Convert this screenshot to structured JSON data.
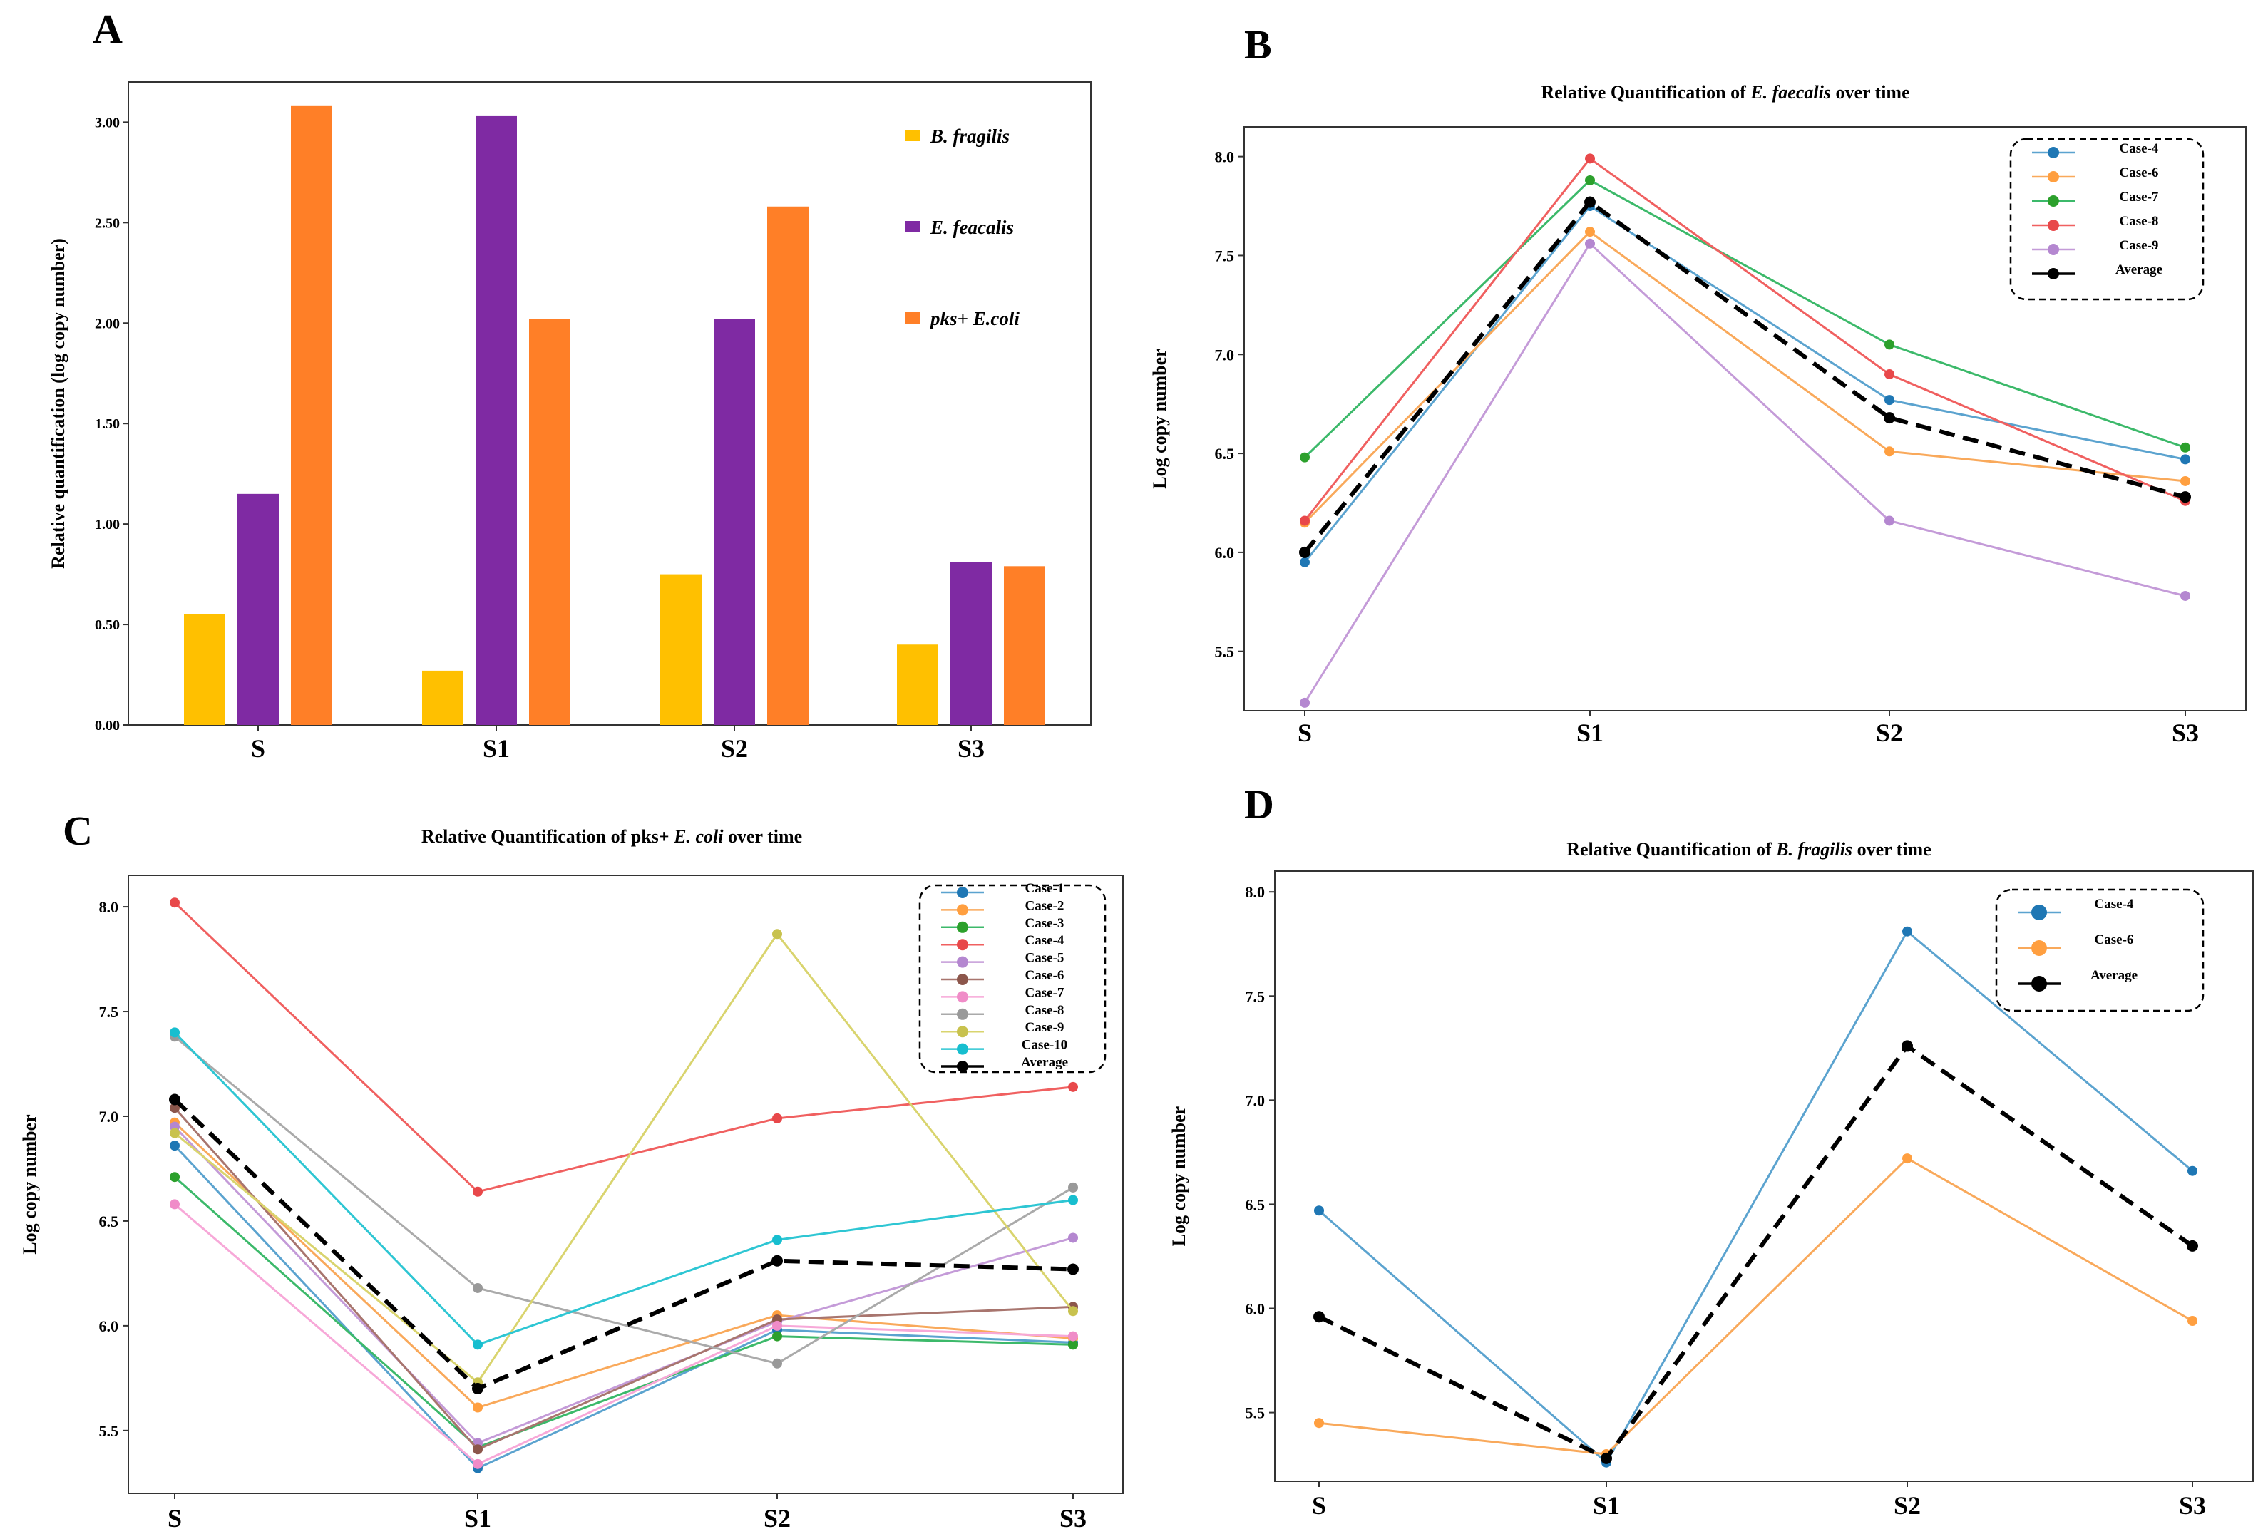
{
  "chart_data": [
    {
      "panel": "A",
      "type": "bar",
      "title": "",
      "xlabel": "",
      "ylabel": "Relative quantification (log copy number)",
      "ylim": [
        0,
        3.2
      ],
      "yticks": [
        "0.00",
        "0.50",
        "1.00",
        "1.50",
        "2.00",
        "2.50",
        "3.00"
      ],
      "categories": [
        "S",
        "S1",
        "S2",
        "S3"
      ],
      "series": [
        {
          "name": "B. fragilis",
          "color": "#FFC000",
          "values": [
            0.55,
            0.27,
            0.75,
            0.4
          ]
        },
        {
          "name": "E. feacalis",
          "color": "#7F2AA3",
          "values": [
            1.15,
            3.03,
            2.02,
            0.81
          ]
        },
        {
          "name": "pks+ E.coli",
          "color": "#FF7F27",
          "values": [
            3.08,
            2.02,
            2.58,
            0.79
          ]
        }
      ]
    },
    {
      "panel": "B",
      "type": "line",
      "title": "Relative Quantification of E. faecalis over time",
      "title_prefix": "Relative Quantification of ",
      "title_species": "E. faecalis",
      "title_suffix": " over time",
      "xlabel": "",
      "ylabel": "Log copy number",
      "ylim": [
        5.2,
        8.15
      ],
      "yticks": [
        "5.5",
        "6.0",
        "6.5",
        "7.0",
        "7.5",
        "8.0"
      ],
      "categories": [
        "S",
        "S1",
        "S2",
        "S3"
      ],
      "series": [
        {
          "name": "Case-4",
          "color": "#5BA3CF",
          "marker_color": "#1F77B4",
          "values": [
            5.95,
            7.75,
            6.77,
            6.47
          ]
        },
        {
          "name": "Case-6",
          "color": "#F9A95B",
          "marker_color": "#FF9F40",
          "values": [
            6.15,
            7.62,
            6.51,
            6.36
          ]
        },
        {
          "name": "Case-7",
          "color": "#3CB96A",
          "marker_color": "#2CA02C",
          "values": [
            6.48,
            7.88,
            7.05,
            6.53
          ]
        },
        {
          "name": "Case-8",
          "color": "#F06060",
          "marker_color": "#E8484A",
          "values": [
            6.16,
            7.99,
            6.9,
            6.26
          ]
        },
        {
          "name": "Case-9",
          "color": "#C49BD8",
          "marker_color": "#B487D0",
          "values": [
            5.24,
            7.56,
            6.16,
            5.78
          ]
        },
        {
          "name": "Average",
          "color": "#000000",
          "marker_color": "#000000",
          "dashed": true,
          "values": [
            6.0,
            7.77,
            6.68,
            6.28
          ]
        }
      ]
    },
    {
      "panel": "C",
      "type": "line",
      "title": "Relative Quantification of pks+ E. coli over time",
      "title_prefix": "Relative Quantification of pks+ ",
      "title_species": "E. coli",
      "title_suffix": " over time",
      "xlabel": "",
      "ylabel": "Log copy number",
      "ylim": [
        5.2,
        8.15
      ],
      "yticks": [
        "5.5",
        "6.0",
        "6.5",
        "7.0",
        "7.5",
        "8.0"
      ],
      "categories": [
        "S",
        "S1",
        "S2",
        "S3"
      ],
      "series": [
        {
          "name": "Case-1",
          "color": "#5BA3CF",
          "marker_color": "#1F77B4",
          "values": [
            6.86,
            5.32,
            5.98,
            5.92
          ]
        },
        {
          "name": "Case-2",
          "color": "#F9A95B",
          "marker_color": "#FF9F40",
          "values": [
            6.97,
            5.61,
            6.05,
            5.94
          ]
        },
        {
          "name": "Case-3",
          "color": "#3CB96A",
          "marker_color": "#2CA02C",
          "values": [
            6.71,
            5.42,
            5.95,
            5.91
          ]
        },
        {
          "name": "Case-4",
          "color": "#F06060",
          "marker_color": "#E8484A",
          "values": [
            8.02,
            6.64,
            6.99,
            7.14
          ]
        },
        {
          "name": "Case-5",
          "color": "#C49BD8",
          "marker_color": "#B487D0",
          "values": [
            6.95,
            5.44,
            6.02,
            6.42
          ]
        },
        {
          "name": "Case-6",
          "color": "#A8756E",
          "marker_color": "#8C564B",
          "values": [
            7.04,
            5.41,
            6.03,
            6.09
          ]
        },
        {
          "name": "Case-7",
          "color": "#F7A8D8",
          "marker_color": "#F08CC8",
          "values": [
            6.58,
            5.34,
            6.0,
            5.95
          ]
        },
        {
          "name": "Case-8",
          "color": "#AAAAAA",
          "marker_color": "#999999",
          "values": [
            7.38,
            6.18,
            5.82,
            6.66
          ]
        },
        {
          "name": "Case-9",
          "color": "#D9D46E",
          "marker_color": "#C8C24E",
          "values": [
            6.92,
            5.73,
            7.87,
            6.07
          ]
        },
        {
          "name": "Case-10",
          "color": "#2EC6D3",
          "marker_color": "#17BECF",
          "values": [
            7.4,
            5.91,
            6.41,
            6.6
          ]
        },
        {
          "name": "Average",
          "color": "#000000",
          "marker_color": "#000000",
          "dashed": true,
          "values": [
            7.08,
            5.7,
            6.31,
            6.27
          ]
        }
      ]
    },
    {
      "panel": "D",
      "type": "line",
      "title": "Relative Quantification of B. fragilis over time",
      "title_prefix": "Relative Quantification of ",
      "title_species": "B. fragilis",
      "title_suffix": " over time",
      "xlabel": "",
      "ylabel": "Log copy number",
      "ylim": [
        5.17,
        8.1
      ],
      "yticks": [
        "5.5",
        "6.0",
        "6.5",
        "7.0",
        "7.5",
        "8.0"
      ],
      "categories": [
        "S",
        "S1",
        "S2",
        "S3"
      ],
      "series": [
        {
          "name": "Case-4",
          "color": "#5BA3CF",
          "marker_color": "#1F77B4",
          "values": [
            6.47,
            5.26,
            7.81,
            6.66
          ]
        },
        {
          "name": "Case-6",
          "color": "#F9A95B",
          "marker_color": "#FF9F40",
          "values": [
            5.45,
            5.3,
            6.72,
            5.94
          ]
        },
        {
          "name": "Average",
          "color": "#000000",
          "marker_color": "#000000",
          "dashed": true,
          "values": [
            5.96,
            5.28,
            7.26,
            6.3
          ]
        }
      ]
    }
  ]
}
